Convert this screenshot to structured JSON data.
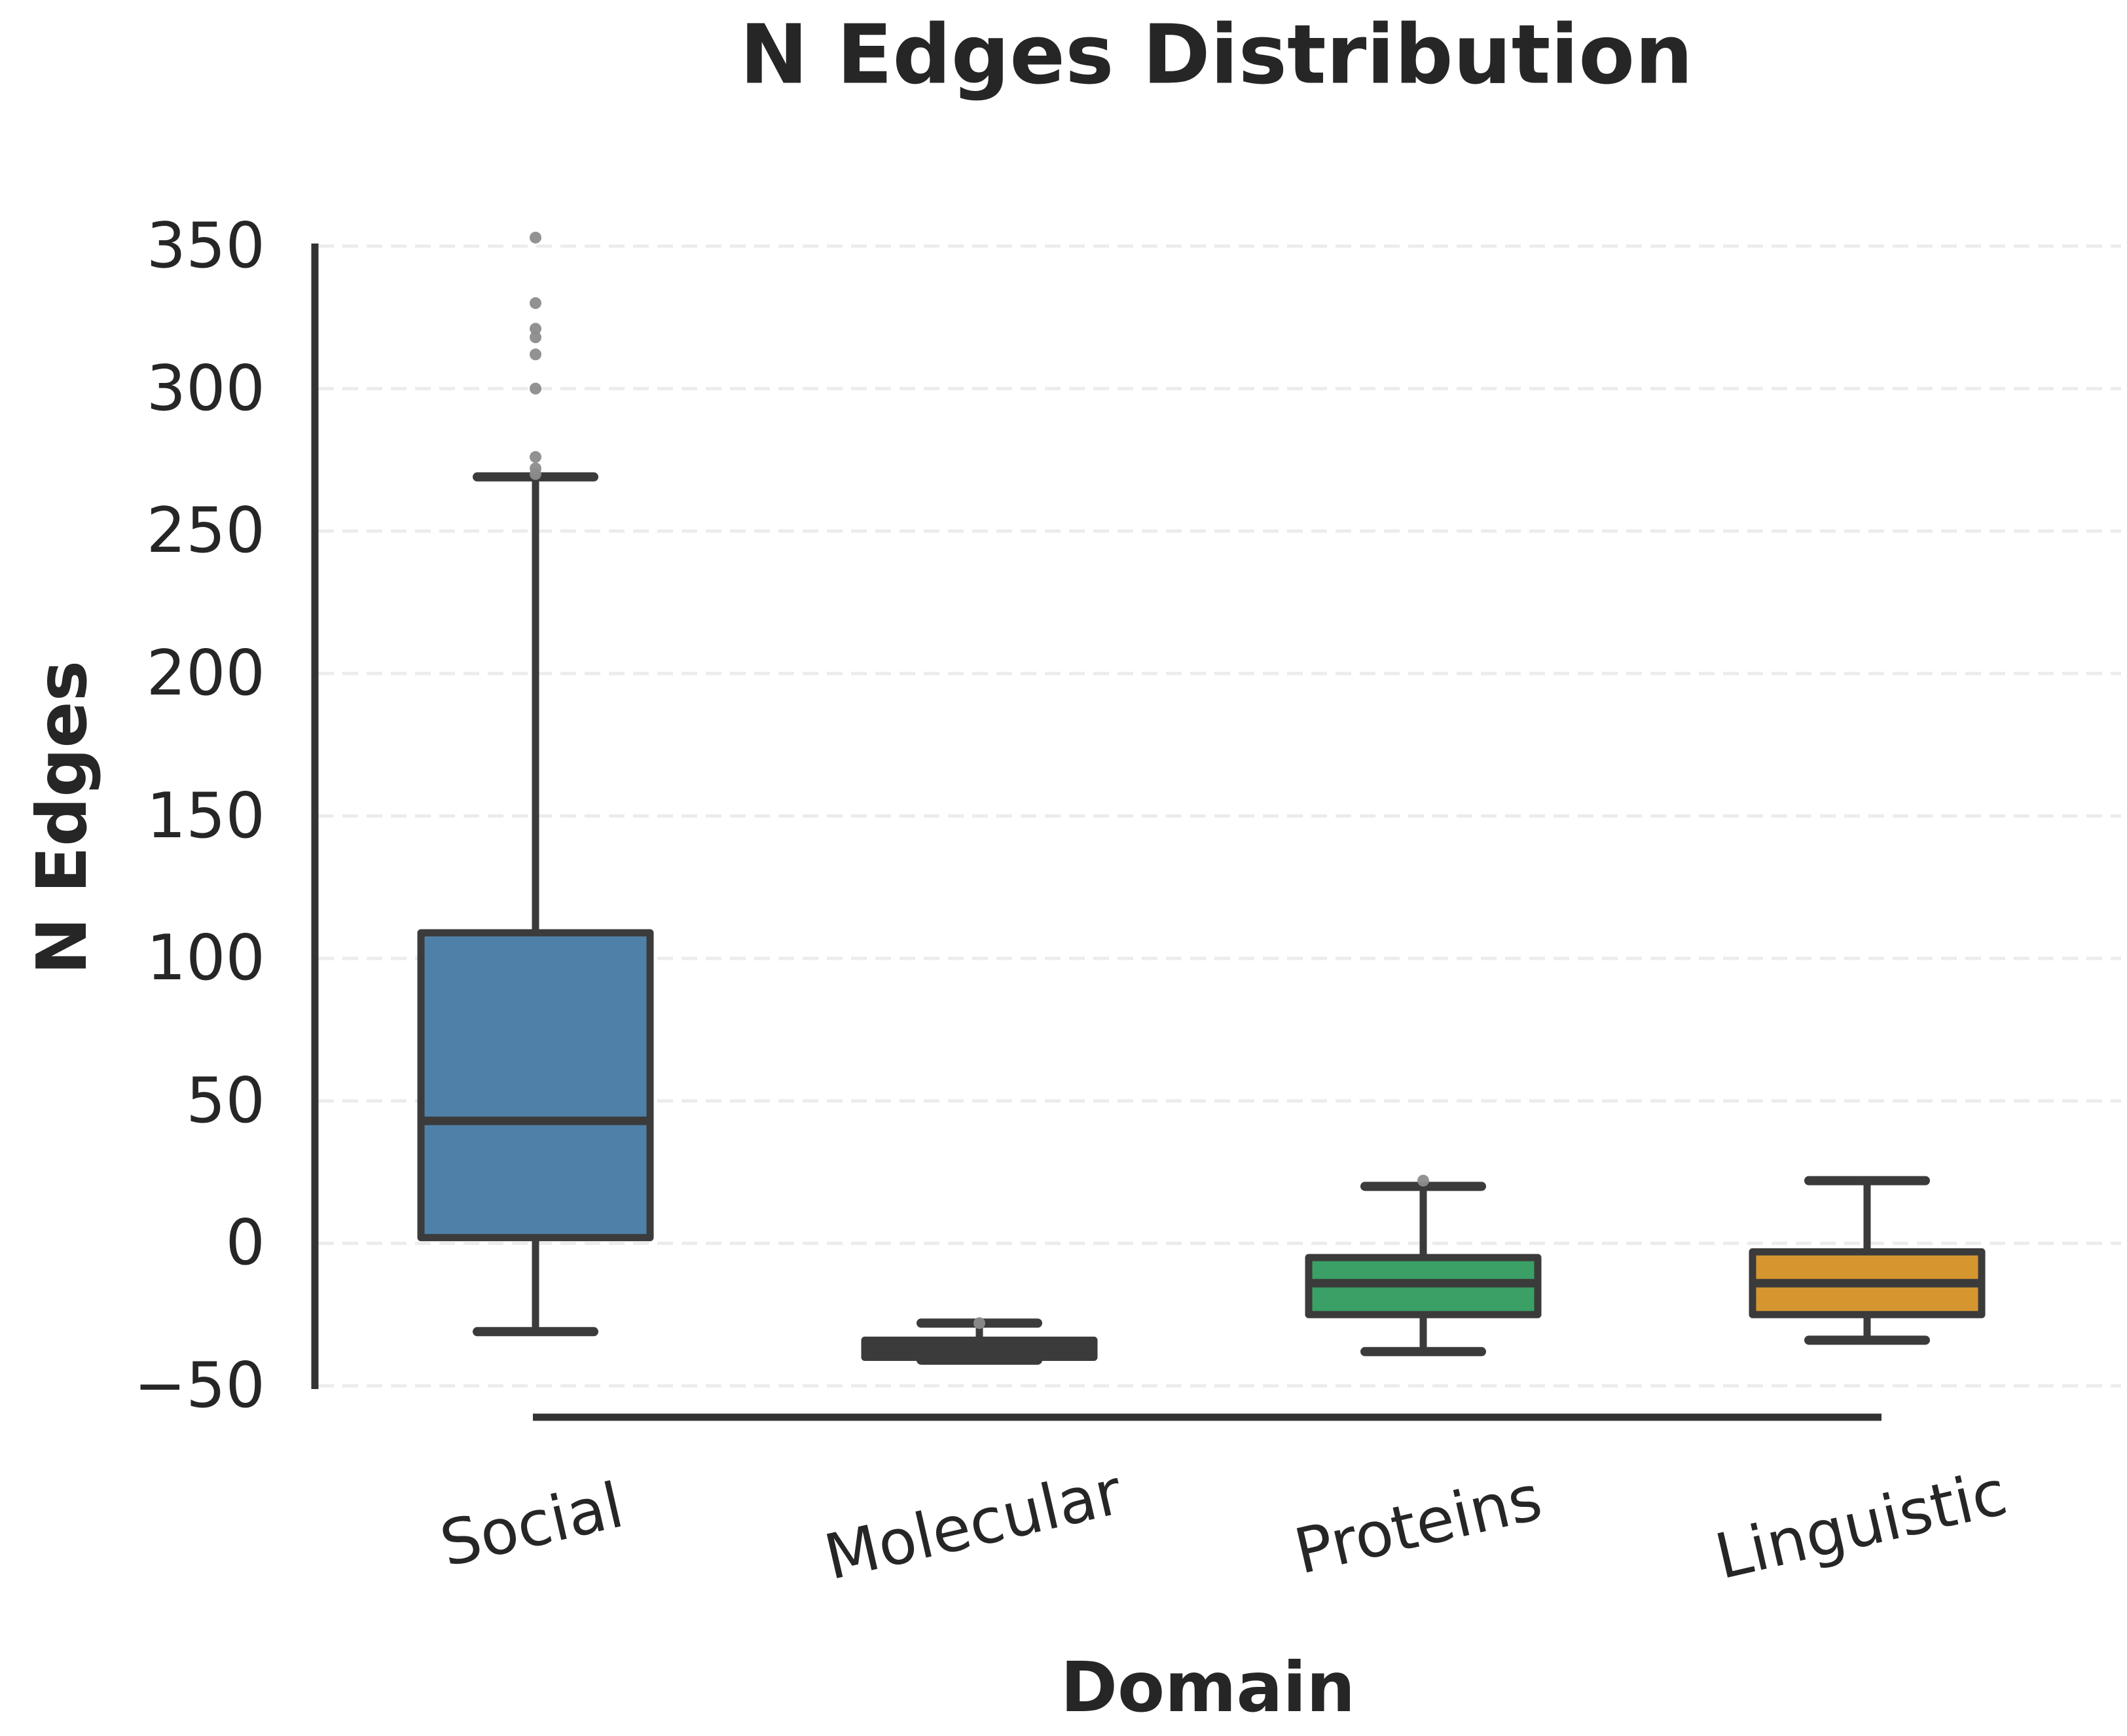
{
  "figure": {
    "title": "N Edges Distribution",
    "x_axis_label": "Domain",
    "y_axis_label": "N Edges"
  },
  "chart_data": {
    "type": "box",
    "title": "N Edges Distribution",
    "xlabel": "Domain",
    "ylabel": "N Edges",
    "categories": [
      "Social",
      "Molecular",
      "Proteins",
      "Linguistic"
    ],
    "y_tick_values": [
      350,
      300,
      250,
      200,
      150,
      100,
      50,
      0,
      -50
    ],
    "y_tick_labels": [
      "350",
      "300",
      "250",
      "200",
      "150",
      "100",
      "50",
      "0",
      "−50"
    ],
    "ylim": [
      -50,
      350
    ],
    "grid": "horizontal-dashed",
    "legend": "none",
    "series": [
      {
        "name": "Social",
        "color": "#4F81A8",
        "whisker_low": -31,
        "q1": 2,
        "median": 43,
        "q3": 109,
        "whisker_high": 269,
        "outliers": [
          353,
          330,
          321,
          318,
          312,
          300,
          276,
          272,
          270
        ]
      },
      {
        "name": "Molecular",
        "color": "#3B3B3B",
        "whisker_low": -41,
        "q1": -40,
        "median": -37,
        "q3": -34,
        "whisker_high": -28,
        "outliers": [
          -28
        ]
      },
      {
        "name": "Proteins",
        "color": "#3AA065",
        "whisker_low": -38,
        "q1": -25,
        "median": -14,
        "q3": -5,
        "whisker_high": 20,
        "outliers": [
          22
        ]
      },
      {
        "name": "Linguistic",
        "color": "#D6962F",
        "whisker_low": -34,
        "q1": -25,
        "median": -14,
        "q3": -3,
        "whisker_high": 22,
        "outliers": []
      }
    ],
    "style_colors": {
      "edge": "#3B3B3B",
      "spine": "#333333",
      "gridline": "#ECECEC",
      "outlier_dot": "#8C8C8C",
      "text": "#262626"
    }
  }
}
